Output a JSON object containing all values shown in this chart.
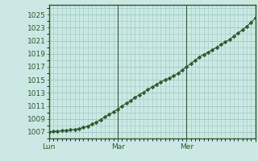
{
  "title": "",
  "background_color": "#cce8e4",
  "plot_bg_color": "#cce8e4",
  "line_color": "#2d5a2d",
  "marker": "D",
  "marker_size": 2.5,
  "line_width": 0.8,
  "grid_color": "#99ccbb",
  "grid_linewidth": 0.5,
  "yticks": [
    1007,
    1009,
    1011,
    1013,
    1015,
    1017,
    1019,
    1021,
    1023,
    1025
  ],
  "ylim": [
    1006.0,
    1026.5
  ],
  "xlim": [
    0,
    48
  ],
  "xtick_positions": [
    0,
    16,
    32,
    48
  ],
  "xtick_labels": [
    "Lun",
    "Mar",
    "Mer",
    ""
  ],
  "tick_fontsize": 6.5,
  "spine_color": "#2d5a2d",
  "y_values": [
    1007.0,
    1007.1,
    1007.1,
    1007.2,
    1007.2,
    1007.3,
    1007.4,
    1007.5,
    1007.7,
    1007.9,
    1008.2,
    1008.5,
    1008.9,
    1009.3,
    1009.7,
    1010.1,
    1010.5,
    1011.0,
    1011.4,
    1011.8,
    1012.3,
    1012.7,
    1013.1,
    1013.5,
    1013.9,
    1014.3,
    1014.7,
    1015.0,
    1015.3,
    1015.6,
    1016.0,
    1016.5,
    1017.0,
    1017.5,
    1018.0,
    1018.5,
    1018.9,
    1019.2,
    1019.6,
    1020.0,
    1020.4,
    1020.8,
    1021.2,
    1021.7,
    1022.2,
    1022.7,
    1023.2,
    1023.8,
    1024.5
  ]
}
